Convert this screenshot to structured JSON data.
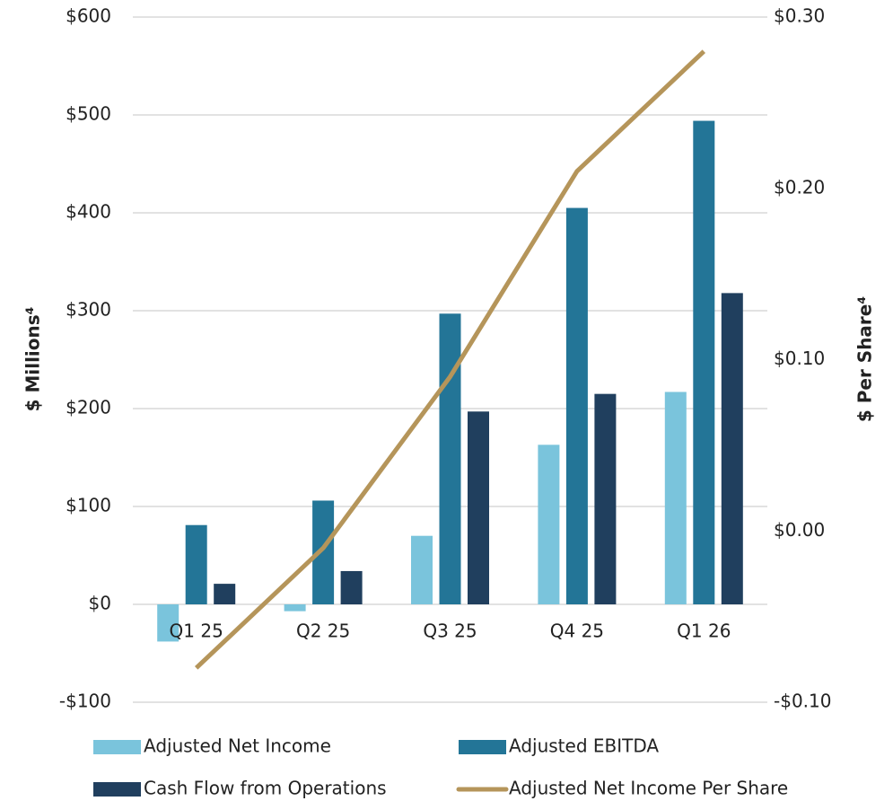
{
  "chart_data": {
    "type": "bar",
    "categories": [
      "Q1 25",
      "Q2 25",
      "Q3 25",
      "Q4 25",
      "Q1 26"
    ],
    "y_label": "$ Millions⁴",
    "y2_label": "$ Per Share⁴",
    "ylim": [
      -100,
      600
    ],
    "yticks": [
      {
        "value": -100,
        "label": "-$100"
      },
      {
        "value": 0,
        "label": "$0"
      },
      {
        "value": 100,
        "label": "$100"
      },
      {
        "value": 200,
        "label": "$200"
      },
      {
        "value": 300,
        "label": "$300"
      },
      {
        "value": 400,
        "label": "$400"
      },
      {
        "value": 500,
        "label": "$500"
      },
      {
        "value": 600,
        "label": "$600"
      }
    ],
    "y2lim": [
      -0.1,
      0.3
    ],
    "y2ticks": [
      {
        "value": -0.1,
        "label": "-$0.10"
      },
      {
        "value": 0,
        "label": "$0.00"
      },
      {
        "value": 0.1,
        "label": "$0.10"
      },
      {
        "value": 0.2,
        "label": "$0.20"
      },
      {
        "value": 0.3,
        "label": "$0.30"
      }
    ],
    "grid": true,
    "legend": "bottom",
    "series": [
      {
        "name": "Adjusted Net Income",
        "type": "bar",
        "color": "#7ac4dc",
        "values": [
          -38,
          -7,
          70,
          163,
          217
        ]
      },
      {
        "name": "Adjusted EBITDA",
        "type": "bar",
        "color": "#237597",
        "values": [
          81,
          106,
          297,
          405,
          494
        ]
      },
      {
        "name": "Cash Flow from Operations",
        "type": "bar",
        "color": "#203f5e",
        "values": [
          21,
          34,
          197,
          215,
          318
        ]
      },
      {
        "name": "Adjusted Net Income Per Share",
        "type": "line",
        "axis": "y2",
        "color": "#b5955a",
        "values": [
          -0.08,
          -0.01,
          0.09,
          0.21,
          0.28
        ]
      }
    ]
  }
}
